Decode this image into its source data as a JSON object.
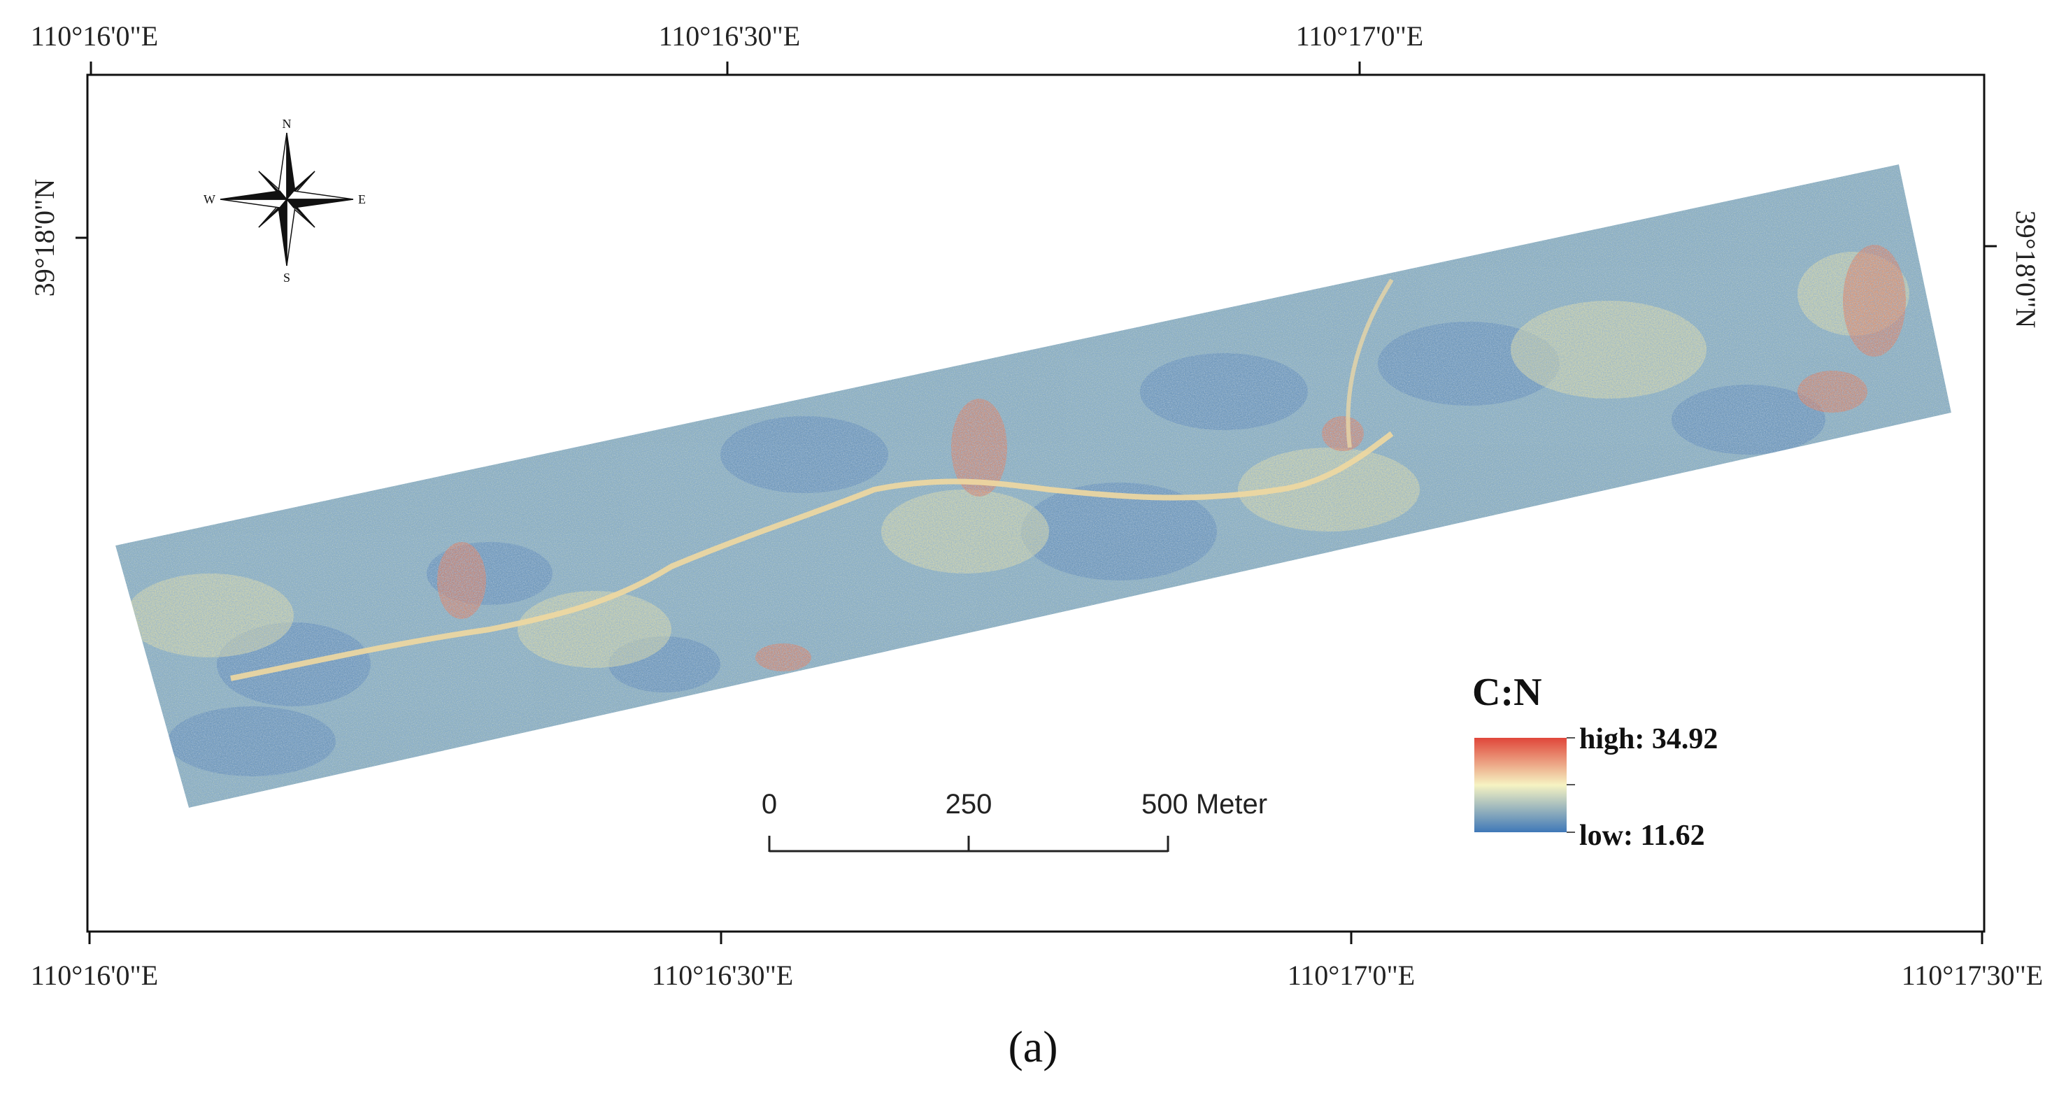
{
  "map": {
    "top_longitude_labels": [
      "110°16'0\"E",
      "110°16'30\"E",
      "110°17'0\"E"
    ],
    "bottom_longitude_labels": [
      "110°16'0\"E",
      "110°16'30\"E",
      "110°17'0\"E",
      "110°17'30\"E"
    ],
    "left_latitude_label": "39°18'0\"N",
    "right_latitude_label": "39°18'0\"N"
  },
  "compass": {
    "north": "N",
    "south": "S",
    "east": "E",
    "west": "W"
  },
  "scale_bar": {
    "labels": [
      "0",
      "250",
      "500 Meter"
    ]
  },
  "legend": {
    "title": "C:N",
    "high_label": "high: 34.92",
    "low_label": "low: 11.62",
    "colors": {
      "high": "#e0463a",
      "mid": "#f6f3c2",
      "low": "#3f78b8"
    }
  },
  "caption": "(a)",
  "raster_palette": {
    "base": "#8eb0bf",
    "blue": "#5b86b8",
    "yellow": "#e3dfa5",
    "red": "#df8062"
  }
}
